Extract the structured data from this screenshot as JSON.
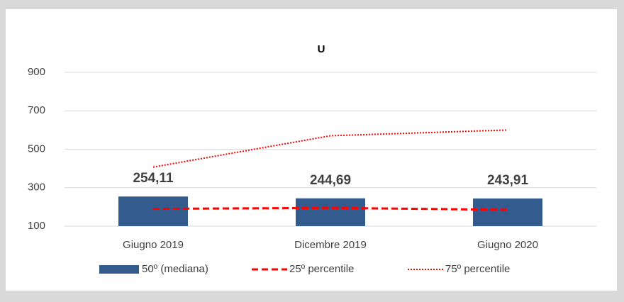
{
  "chart_data": {
    "type": "combo",
    "title": "U",
    "categories": [
      "Giugno 2019",
      "Dicembre 2019",
      "Giugno 2020"
    ],
    "series": [
      {
        "name": "50º (mediana)",
        "type": "bar",
        "color": "#335b8e",
        "values": [
          254.11,
          244.69,
          243.91
        ],
        "value_labels": [
          "254,11",
          "244,69",
          "243,91"
        ]
      },
      {
        "name": "25º percentile",
        "type": "line",
        "style": "dashed",
        "color": "#ff0000",
        "values": [
          190,
          195,
          185
        ]
      },
      {
        "name": "75º percentile",
        "type": "line",
        "style": "dotted",
        "color": "#ff0000",
        "values": [
          407,
          570,
          600
        ]
      }
    ],
    "ylim": [
      100,
      900
    ],
    "yticks": [
      100,
      300,
      500,
      700,
      900
    ],
    "grid": true,
    "legend": "bottom"
  }
}
